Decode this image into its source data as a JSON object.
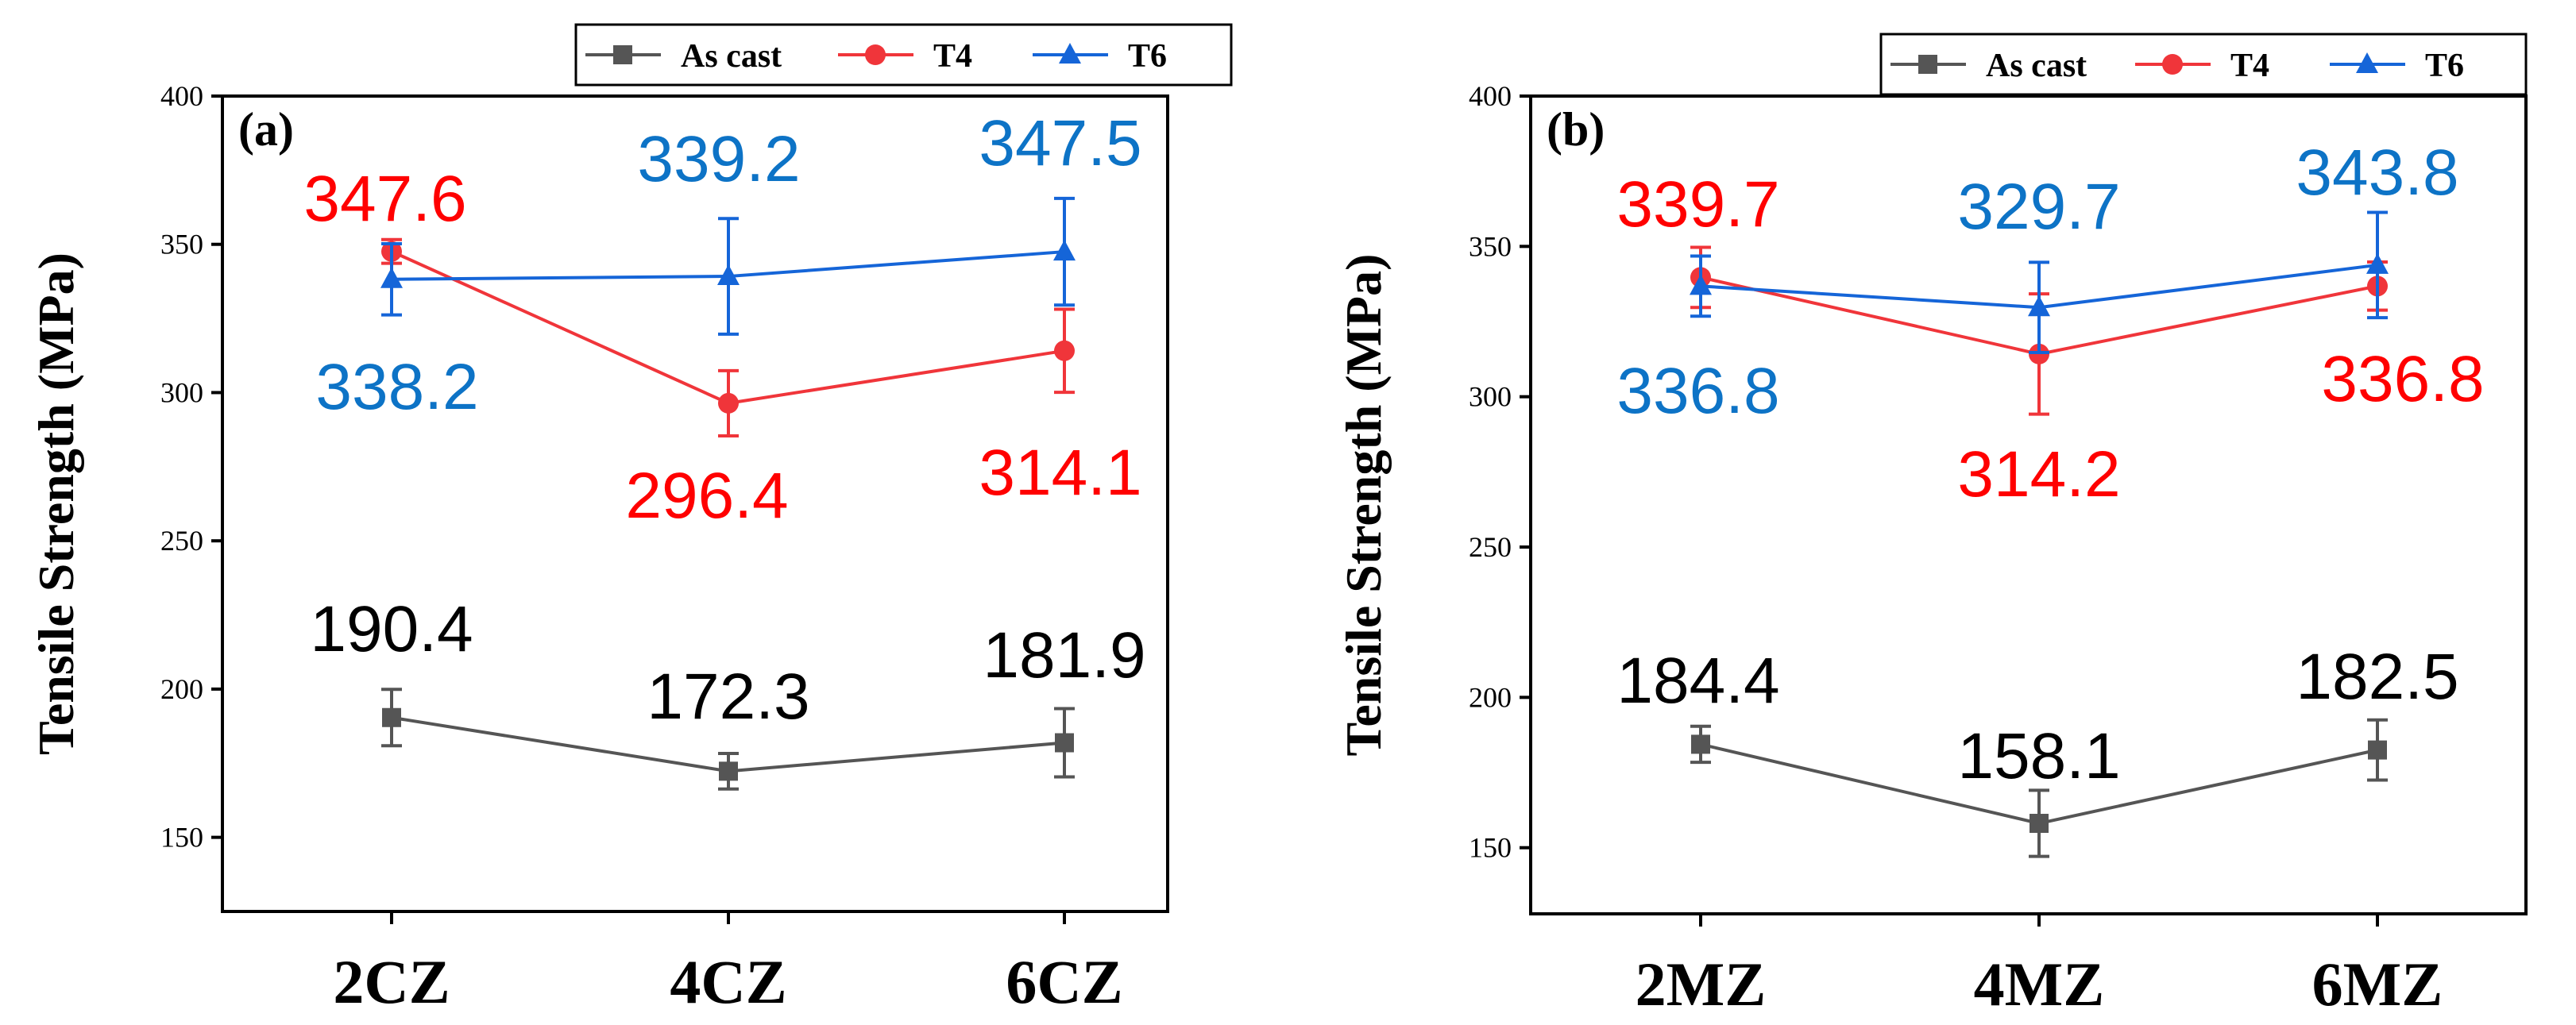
{
  "colors": {
    "as_cast": "#555555",
    "t4": "#f0353a",
    "t6": "#1565d8",
    "label_as_cast": "#000000",
    "label_t4": "#ff0000",
    "label_t6": "#0d73c6"
  },
  "chart_data": [
    {
      "type": "line",
      "panel_label": "(a)",
      "ylabel": "Tensile Strength (MPa)",
      "xlabel": "",
      "categories": [
        "2CZ",
        "4CZ",
        "6CZ"
      ],
      "ylim": [
        125,
        400
      ],
      "yticks": [
        150,
        200,
        250,
        300,
        350,
        400
      ],
      "legend": {
        "position": "top",
        "entries": [
          "As cast",
          "T4",
          "T6"
        ]
      },
      "series": [
        {
          "name": "As cast",
          "marker": "square",
          "values": [
            190.4,
            172.3,
            181.9
          ],
          "errors": [
            9.5,
            6.0,
            11.5
          ],
          "labels": [
            "190.4",
            "172.3",
            "181.9"
          ]
        },
        {
          "name": "T4",
          "marker": "circle",
          "values": [
            347.6,
            296.4,
            314.1
          ],
          "errors": [
            4.0,
            11.0,
            14.0
          ],
          "labels": [
            "347.6",
            "296.4",
            "314.1"
          ]
        },
        {
          "name": "T6",
          "marker": "triangle",
          "values": [
            338.2,
            339.2,
            347.5
          ],
          "errors": [
            12.0,
            19.5,
            18.0
          ],
          "labels": [
            "338.2",
            "339.2",
            "347.5"
          ]
        }
      ]
    },
    {
      "type": "line",
      "panel_label": "(b)",
      "ylabel": "Tensile Strength (MPa)",
      "xlabel": "",
      "categories": [
        "2MZ",
        "4MZ",
        "6MZ"
      ],
      "ylim": [
        128,
        400
      ],
      "yticks": [
        150,
        200,
        250,
        300,
        350,
        400
      ],
      "legend": {
        "position": "top",
        "entries": [
          "As cast",
          "T4",
          "T6"
        ]
      },
      "series": [
        {
          "name": "As cast",
          "marker": "square",
          "values": [
            184.4,
            158.1,
            182.5
          ],
          "errors": [
            6.0,
            11.0,
            10.0
          ],
          "labels": [
            "184.4",
            "158.1",
            "182.5"
          ]
        },
        {
          "name": "T4",
          "marker": "circle",
          "values": [
            339.7,
            314.2,
            336.8
          ],
          "errors": [
            10.0,
            20.0,
            8.0
          ],
          "labels": [
            "339.7",
            "314.2",
            "336.8"
          ]
        },
        {
          "name": "T6",
          "marker": "triangle",
          "values": [
            336.8,
            329.7,
            343.8
          ],
          "errors": [
            10.0,
            15.0,
            17.5
          ],
          "labels": [
            "336.8",
            "329.7",
            "343.8"
          ]
        }
      ]
    }
  ]
}
